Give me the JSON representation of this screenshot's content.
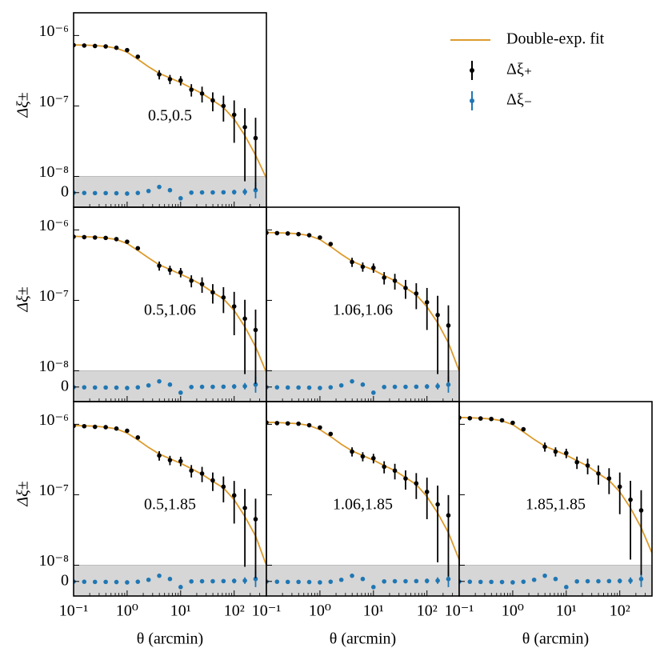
{
  "chart_data": {
    "type": "errorbar",
    "xscale": "log",
    "yscale": "symlog",
    "linthresh": 1e-08,
    "linscale": 0.23,
    "shade_linear_region": true,
    "xminor": true,
    "xlabel": "θ (arcmin)",
    "ylabel": "Δξ±",
    "xlim": [
      0.1,
      400
    ],
    "ylim": [
      -9e-09,
      2.1e-06
    ],
    "xticks": [
      {
        "value": 0.1,
        "label": "10⁻¹"
      },
      {
        "value": 1,
        "label": "10⁰"
      },
      {
        "value": 10,
        "label": "10¹"
      },
      {
        "value": 100,
        "label": "10²"
      }
    ],
    "yticks": [
      0,
      {
        "value": 1e-08,
        "label": "10⁻⁸"
      },
      {
        "value": 1e-07,
        "label": "10⁻⁷"
      },
      {
        "value": 1e-06,
        "label": "10⁻⁶"
      }
    ],
    "series": [
      {
        "name": "Double-exp. fit",
        "color": "#dc9b2c"
      },
      {
        "name": "Δξ₊",
        "color": "#000000"
      },
      {
        "name": "Δξ₋",
        "color": "#1f77b4"
      }
    ],
    "x": [
      0.1,
      0.158,
      0.251,
      0.398,
      0.631,
      1,
      1.585,
      2.512,
      3.981,
      6.31,
      10,
      15.85,
      25.12,
      39.81,
      63.1,
      100,
      158.5,
      251.2,
      398.1
    ],
    "panels": [
      {
        "label": "0.5,0.5",
        "fit": [
          7.35e-07,
          7.3e-07,
          7.2e-07,
          7e-07,
          6.6e-07,
          5.8e-07,
          4.6e-07,
          3.6e-07,
          2.9e-07,
          2.5e-07,
          2.15e-07,
          1.8e-07,
          1.5e-07,
          1.2e-07,
          9.5e-08,
          6.5e-08,
          3.8e-08,
          2e-08,
          9e-09
        ],
        "plus": [
          7.3e-07,
          7.2e-07,
          7.1e-07,
          7e-07,
          6.7e-07,
          6.2e-07,
          5e-07,
          null,
          2.8e-07,
          2.4e-07,
          2.3e-07,
          1.7e-07,
          1.5e-07,
          1.2e-07,
          1e-07,
          7.5e-08,
          5e-08,
          3.5e-08,
          null
        ],
        "plus_err": [
          1.5e-08,
          1.4e-08,
          1.4e-08,
          1.4e-08,
          2e-08,
          2.5e-08,
          3e-08,
          null,
          4.2e-08,
          3.6e-08,
          3.5e-08,
          3.4e-08,
          3.8e-08,
          3.6e-08,
          4e-08,
          4.5e-08,
          4.3e-08,
          3.3e-08,
          null
        ],
        "minus": [
          -1e-10,
          -2e-10,
          -3e-10,
          -3e-10,
          -4e-10,
          -6e-10,
          -2e-10,
          1e-09,
          3.5e-09,
          1.5e-09,
          -3.5e-09,
          0,
          1e-10,
          1e-10,
          2e-10,
          3e-10,
          5e-10,
          1.5e-09,
          null
        ],
        "minus_err": [
          1e-10,
          1e-10,
          1e-10,
          1e-10,
          1e-10,
          1e-10,
          2e-10,
          3e-10,
          5e-10,
          6e-10,
          8e-10,
          8e-10,
          9e-10,
          1e-09,
          1.2e-09,
          1.5e-09,
          2e-09,
          5e-09,
          null
        ]
      },
      {
        "label": "0.5,1.06",
        "fit": [
          8.1e-07,
          8e-07,
          7.9e-07,
          7.7e-07,
          7.3e-07,
          6.4e-07,
          5.1e-07,
          4e-07,
          3.2e-07,
          2.75e-07,
          2.35e-07,
          2e-07,
          1.65e-07,
          1.3e-07,
          1.05e-07,
          7.2e-08,
          4.2e-08,
          2.2e-08,
          9e-09
        ],
        "plus": [
          8e-07,
          7.9e-07,
          7.8e-07,
          7.7e-07,
          7.4e-07,
          6.8e-07,
          5.5e-07,
          null,
          3.1e-07,
          2.7e-07,
          2.5e-07,
          1.9e-07,
          1.7e-07,
          1.3e-07,
          1.1e-07,
          8.2e-08,
          5.5e-08,
          3.8e-08,
          null
        ],
        "plus_err": [
          1.6e-08,
          1.5e-08,
          1.5e-08,
          1.5e-08,
          2.2e-08,
          2.7e-08,
          3.3e-08,
          null,
          4.6e-08,
          4e-08,
          3.8e-08,
          3.7e-08,
          4.2e-08,
          4e-08,
          4.4e-08,
          5e-08,
          4.7e-08,
          3.6e-08,
          null
        ],
        "minus": [
          -1e-10,
          -2e-10,
          -3e-10,
          -3e-10,
          -4e-10,
          -6e-10,
          -2e-10,
          1e-09,
          3.5e-09,
          1.5e-09,
          -3.5e-09,
          0,
          1e-10,
          1e-10,
          2e-10,
          3e-10,
          5e-10,
          1.5e-09,
          null
        ],
        "minus_err": [
          1e-10,
          1e-10,
          1e-10,
          1e-10,
          1e-10,
          1e-10,
          2e-10,
          3e-10,
          5e-10,
          6e-10,
          8e-10,
          8e-10,
          9e-10,
          1e-09,
          1.2e-09,
          1.5e-09,
          2e-09,
          5e-09,
          null
        ]
      },
      {
        "label": "1.06,1.06",
        "fit": [
          9.2e-07,
          9.1e-07,
          9e-07,
          8.8e-07,
          8.3e-07,
          7.3e-07,
          5.8e-07,
          4.5e-07,
          3.6e-07,
          3.1e-07,
          2.7e-07,
          2.25e-07,
          1.9e-07,
          1.5e-07,
          1.2e-07,
          8.1e-08,
          4.8e-08,
          2.5e-08,
          1e-08
        ],
        "plus": [
          9.1e-07,
          9e-07,
          8.9e-07,
          8.7e-07,
          8.4e-07,
          7.8e-07,
          6.3e-07,
          null,
          3.5e-07,
          3e-07,
          2.9e-07,
          2.1e-07,
          1.9e-07,
          1.5e-07,
          1.25e-07,
          9.4e-08,
          6.2e-08,
          4.4e-08,
          null
        ],
        "plus_err": [
          1.9e-08,
          1.8e-08,
          1.8e-08,
          1.8e-08,
          2.5e-08,
          3.1e-08,
          3.8e-08,
          null,
          5.2e-08,
          4.5e-08,
          4.4e-08,
          4.2e-08,
          4.8e-08,
          4.5e-08,
          5e-08,
          5.6e-08,
          5.4e-08,
          4.1e-08,
          null
        ],
        "minus": [
          -1e-10,
          -2e-10,
          -3e-10,
          -3e-10,
          -4e-10,
          -6e-10,
          -2e-10,
          1e-09,
          3.5e-09,
          1.5e-09,
          -3.5e-09,
          0,
          1e-10,
          1e-10,
          2e-10,
          3e-10,
          5e-10,
          1.5e-09,
          null
        ],
        "minus_err": [
          1e-10,
          1e-10,
          1e-10,
          1e-10,
          1e-10,
          1e-10,
          2e-10,
          3e-10,
          5e-10,
          6e-10,
          8e-10,
          8e-10,
          9e-10,
          1e-09,
          1.2e-09,
          1.5e-09,
          2e-09,
          5e-09,
          null
        ]
      },
      {
        "label": "0.5,1.85",
        "fit": [
          9.6e-07,
          9.5e-07,
          9.4e-07,
          9.1e-07,
          8.6e-07,
          7.5e-07,
          6e-07,
          4.7e-07,
          3.8e-07,
          3.25e-07,
          2.8e-07,
          2.35e-07,
          1.95e-07,
          1.55e-07,
          1.25e-07,
          8.5e-08,
          4.9e-08,
          2.6e-08,
          1e-08
        ],
        "plus": [
          9.5e-07,
          9.4e-07,
          9.2e-07,
          9.1e-07,
          8.7e-07,
          8.1e-07,
          6.5e-07,
          null,
          3.6e-07,
          3.1e-07,
          3e-07,
          2.2e-07,
          2e-07,
          1.6e-07,
          1.3e-07,
          9.8e-08,
          6.5e-08,
          4.5e-08,
          null
        ],
        "plus_err": [
          2e-08,
          1.8e-08,
          1.8e-08,
          1.8e-08,
          2.6e-08,
          3.3e-08,
          3.9e-08,
          null,
          5.5e-08,
          4.7e-08,
          4.6e-08,
          4.4e-08,
          4.9e-08,
          4.7e-08,
          5.2e-08,
          5.9e-08,
          5.6e-08,
          4.3e-08,
          null
        ],
        "minus": [
          -1e-10,
          -2e-10,
          -3e-10,
          -3e-10,
          -4e-10,
          -6e-10,
          -2e-10,
          1e-09,
          3.5e-09,
          1.5e-09,
          -3.5e-09,
          0,
          1e-10,
          1e-10,
          2e-10,
          3e-10,
          5e-10,
          1.5e-09,
          null
        ],
        "minus_err": [
          1e-10,
          1e-10,
          1e-10,
          1e-10,
          1e-10,
          1e-10,
          2e-10,
          3e-10,
          5e-10,
          6e-10,
          8e-10,
          8e-10,
          9e-10,
          1e-09,
          1.2e-09,
          1.5e-09,
          2e-09,
          5e-09,
          null
        ]
      },
      {
        "label": "1.06,1.85",
        "fit": [
          1.07e-06,
          1.06e-06,
          1.04e-06,
          1.02e-06,
          9.6e-07,
          8.4e-07,
          6.7e-07,
          5.2e-07,
          4.2e-07,
          3.6e-07,
          3.1e-07,
          2.6e-07,
          2.2e-07,
          1.75e-07,
          1.4e-07,
          9.4e-08,
          5.5e-08,
          2.9e-08,
          1.2e-08
        ],
        "plus": [
          1.06e-06,
          1.04e-06,
          1.03e-06,
          1.02e-06,
          9.7e-07,
          9e-07,
          7.3e-07,
          null,
          4.1e-07,
          3.5e-07,
          3.3e-07,
          2.5e-07,
          2.2e-07,
          1.7e-07,
          1.45e-07,
          1.1e-07,
          7.3e-08,
          5.1e-08,
          null
        ],
        "plus_err": [
          2.2e-08,
          2e-08,
          2e-08,
          2e-08,
          2.9e-08,
          3.6e-08,
          4.4e-08,
          null,
          6.1e-08,
          5.2e-08,
          5.1e-08,
          4.9e-08,
          5.5e-08,
          5.2e-08,
          5.8e-08,
          6.5e-08,
          6.2e-08,
          4.8e-08,
          null
        ],
        "minus": [
          -1e-10,
          -2e-10,
          -3e-10,
          -3e-10,
          -4e-10,
          -6e-10,
          -2e-10,
          1e-09,
          3.5e-09,
          1.5e-09,
          -3.5e-09,
          0,
          1e-10,
          1e-10,
          2e-10,
          3e-10,
          5e-10,
          1.5e-09,
          null
        ],
        "minus_err": [
          1e-10,
          1e-10,
          1e-10,
          1e-10,
          1e-10,
          1e-10,
          2e-10,
          3e-10,
          5e-10,
          6e-10,
          8e-10,
          8e-10,
          9e-10,
          1e-09,
          1.2e-09,
          1.5e-09,
          2e-09,
          5e-09,
          null
        ]
      },
      {
        "label": "1.85,1.85",
        "fit": [
          1.25e-06,
          1.24e-06,
          1.22e-06,
          1.19e-06,
          1.12e-06,
          9.9e-07,
          7.8e-07,
          6.1e-07,
          4.9e-07,
          4.25e-07,
          3.65e-07,
          3.05e-07,
          2.55e-07,
          2e-07,
          1.6e-07,
          1.1e-07,
          6.5e-08,
          3.4e-08,
          1.5e-08
        ],
        "plus": [
          1.24e-06,
          1.22e-06,
          1.21e-06,
          1.19e-06,
          1.14e-06,
          1.05e-06,
          8.5e-07,
          null,
          4.8e-07,
          4.1e-07,
          3.9e-07,
          2.9e-07,
          2.6e-07,
          2e-07,
          1.7e-07,
          1.3e-07,
          8.5e-08,
          6e-08,
          null
        ],
        "plus_err": [
          2.6e-08,
          2.4e-08,
          2.4e-08,
          2.4e-08,
          3.4e-08,
          4.3e-08,
          5.1e-08,
          null,
          7.1e-08,
          6.1e-08,
          6e-08,
          5.8e-08,
          6.5e-08,
          6.1e-08,
          6.8e-08,
          7.7e-08,
          7.3e-08,
          5.6e-08,
          null
        ],
        "minus": [
          -1e-10,
          -2e-10,
          -3e-10,
          -3e-10,
          -4e-10,
          -6e-10,
          -2e-10,
          1e-09,
          3.5e-09,
          1.5e-09,
          -3.5e-09,
          0,
          1e-10,
          1e-10,
          2e-10,
          3e-10,
          5e-10,
          1.5e-09,
          null
        ],
        "minus_err": [
          1e-10,
          1e-10,
          1e-10,
          1e-10,
          1e-10,
          1e-10,
          2e-10,
          3e-10,
          5e-10,
          6e-10,
          8e-10,
          8e-10,
          9e-10,
          1e-09,
          1.2e-09,
          1.5e-09,
          2e-09,
          5e-09,
          null
        ]
      }
    ]
  }
}
